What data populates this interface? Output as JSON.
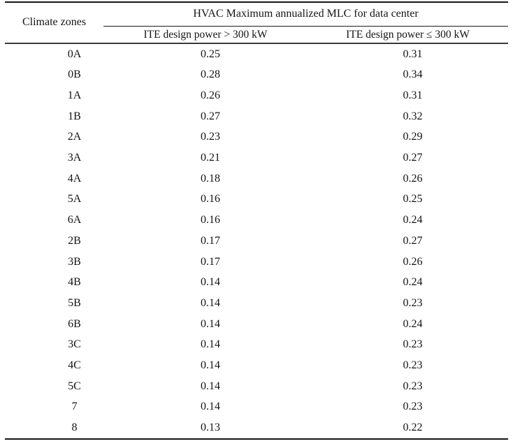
{
  "table": {
    "corner_header": "Climate zones",
    "span_header": "HVAC Maximum annualized MLC for data center",
    "sub_headers": [
      "ITE design power > 300 kW",
      "ITE design power ≤ 300 kW"
    ],
    "rows": [
      [
        "0A",
        "0.25",
        "0.31"
      ],
      [
        "0B",
        "0.28",
        "0.34"
      ],
      [
        "1A",
        "0.26",
        "0.31"
      ],
      [
        "1B",
        "0.27",
        "0.32"
      ],
      [
        "2A",
        "0.23",
        "0.29"
      ],
      [
        "3A",
        "0.21",
        "0.27"
      ],
      [
        "4A",
        "0.18",
        "0.26"
      ],
      [
        "5A",
        "0.16",
        "0.25"
      ],
      [
        "6A",
        "0.16",
        "0.24"
      ],
      [
        "2B",
        "0.17",
        "0.27"
      ],
      [
        "3B",
        "0.17",
        "0.26"
      ],
      [
        "4B",
        "0.14",
        "0.24"
      ],
      [
        "5B",
        "0.14",
        "0.23"
      ],
      [
        "6B",
        "0.14",
        "0.24"
      ],
      [
        "3C",
        "0.14",
        "0.23"
      ],
      [
        "4C",
        "0.14",
        "0.23"
      ],
      [
        "5C",
        "0.14",
        "0.23"
      ],
      [
        "7",
        "0.14",
        "0.23"
      ],
      [
        "8",
        "0.13",
        "0.22"
      ]
    ]
  },
  "chart_data": {
    "type": "table",
    "title": "HVAC Maximum annualized MLC for data center",
    "columns": [
      "Climate zones",
      "ITE design power > 300 kW",
      "ITE design power ≤ 300 kW"
    ],
    "rows": [
      [
        "0A",
        0.25,
        0.31
      ],
      [
        "0B",
        0.28,
        0.34
      ],
      [
        "1A",
        0.26,
        0.31
      ],
      [
        "1B",
        0.27,
        0.32
      ],
      [
        "2A",
        0.23,
        0.29
      ],
      [
        "3A",
        0.21,
        0.27
      ],
      [
        "4A",
        0.18,
        0.26
      ],
      [
        "5A",
        0.16,
        0.25
      ],
      [
        "6A",
        0.16,
        0.24
      ],
      [
        "2B",
        0.17,
        0.27
      ],
      [
        "3B",
        0.17,
        0.26
      ],
      [
        "4B",
        0.14,
        0.24
      ],
      [
        "5B",
        0.14,
        0.23
      ],
      [
        "6B",
        0.14,
        0.24
      ],
      [
        "3C",
        0.14,
        0.23
      ],
      [
        "4C",
        0.14,
        0.23
      ],
      [
        "5C",
        0.14,
        0.23
      ],
      [
        "7",
        0.14,
        0.23
      ],
      [
        "8",
        0.13,
        0.22
      ]
    ],
    "colors": {
      "text": "#141414",
      "rule": "#161616",
      "background": "#ffffff"
    }
  }
}
